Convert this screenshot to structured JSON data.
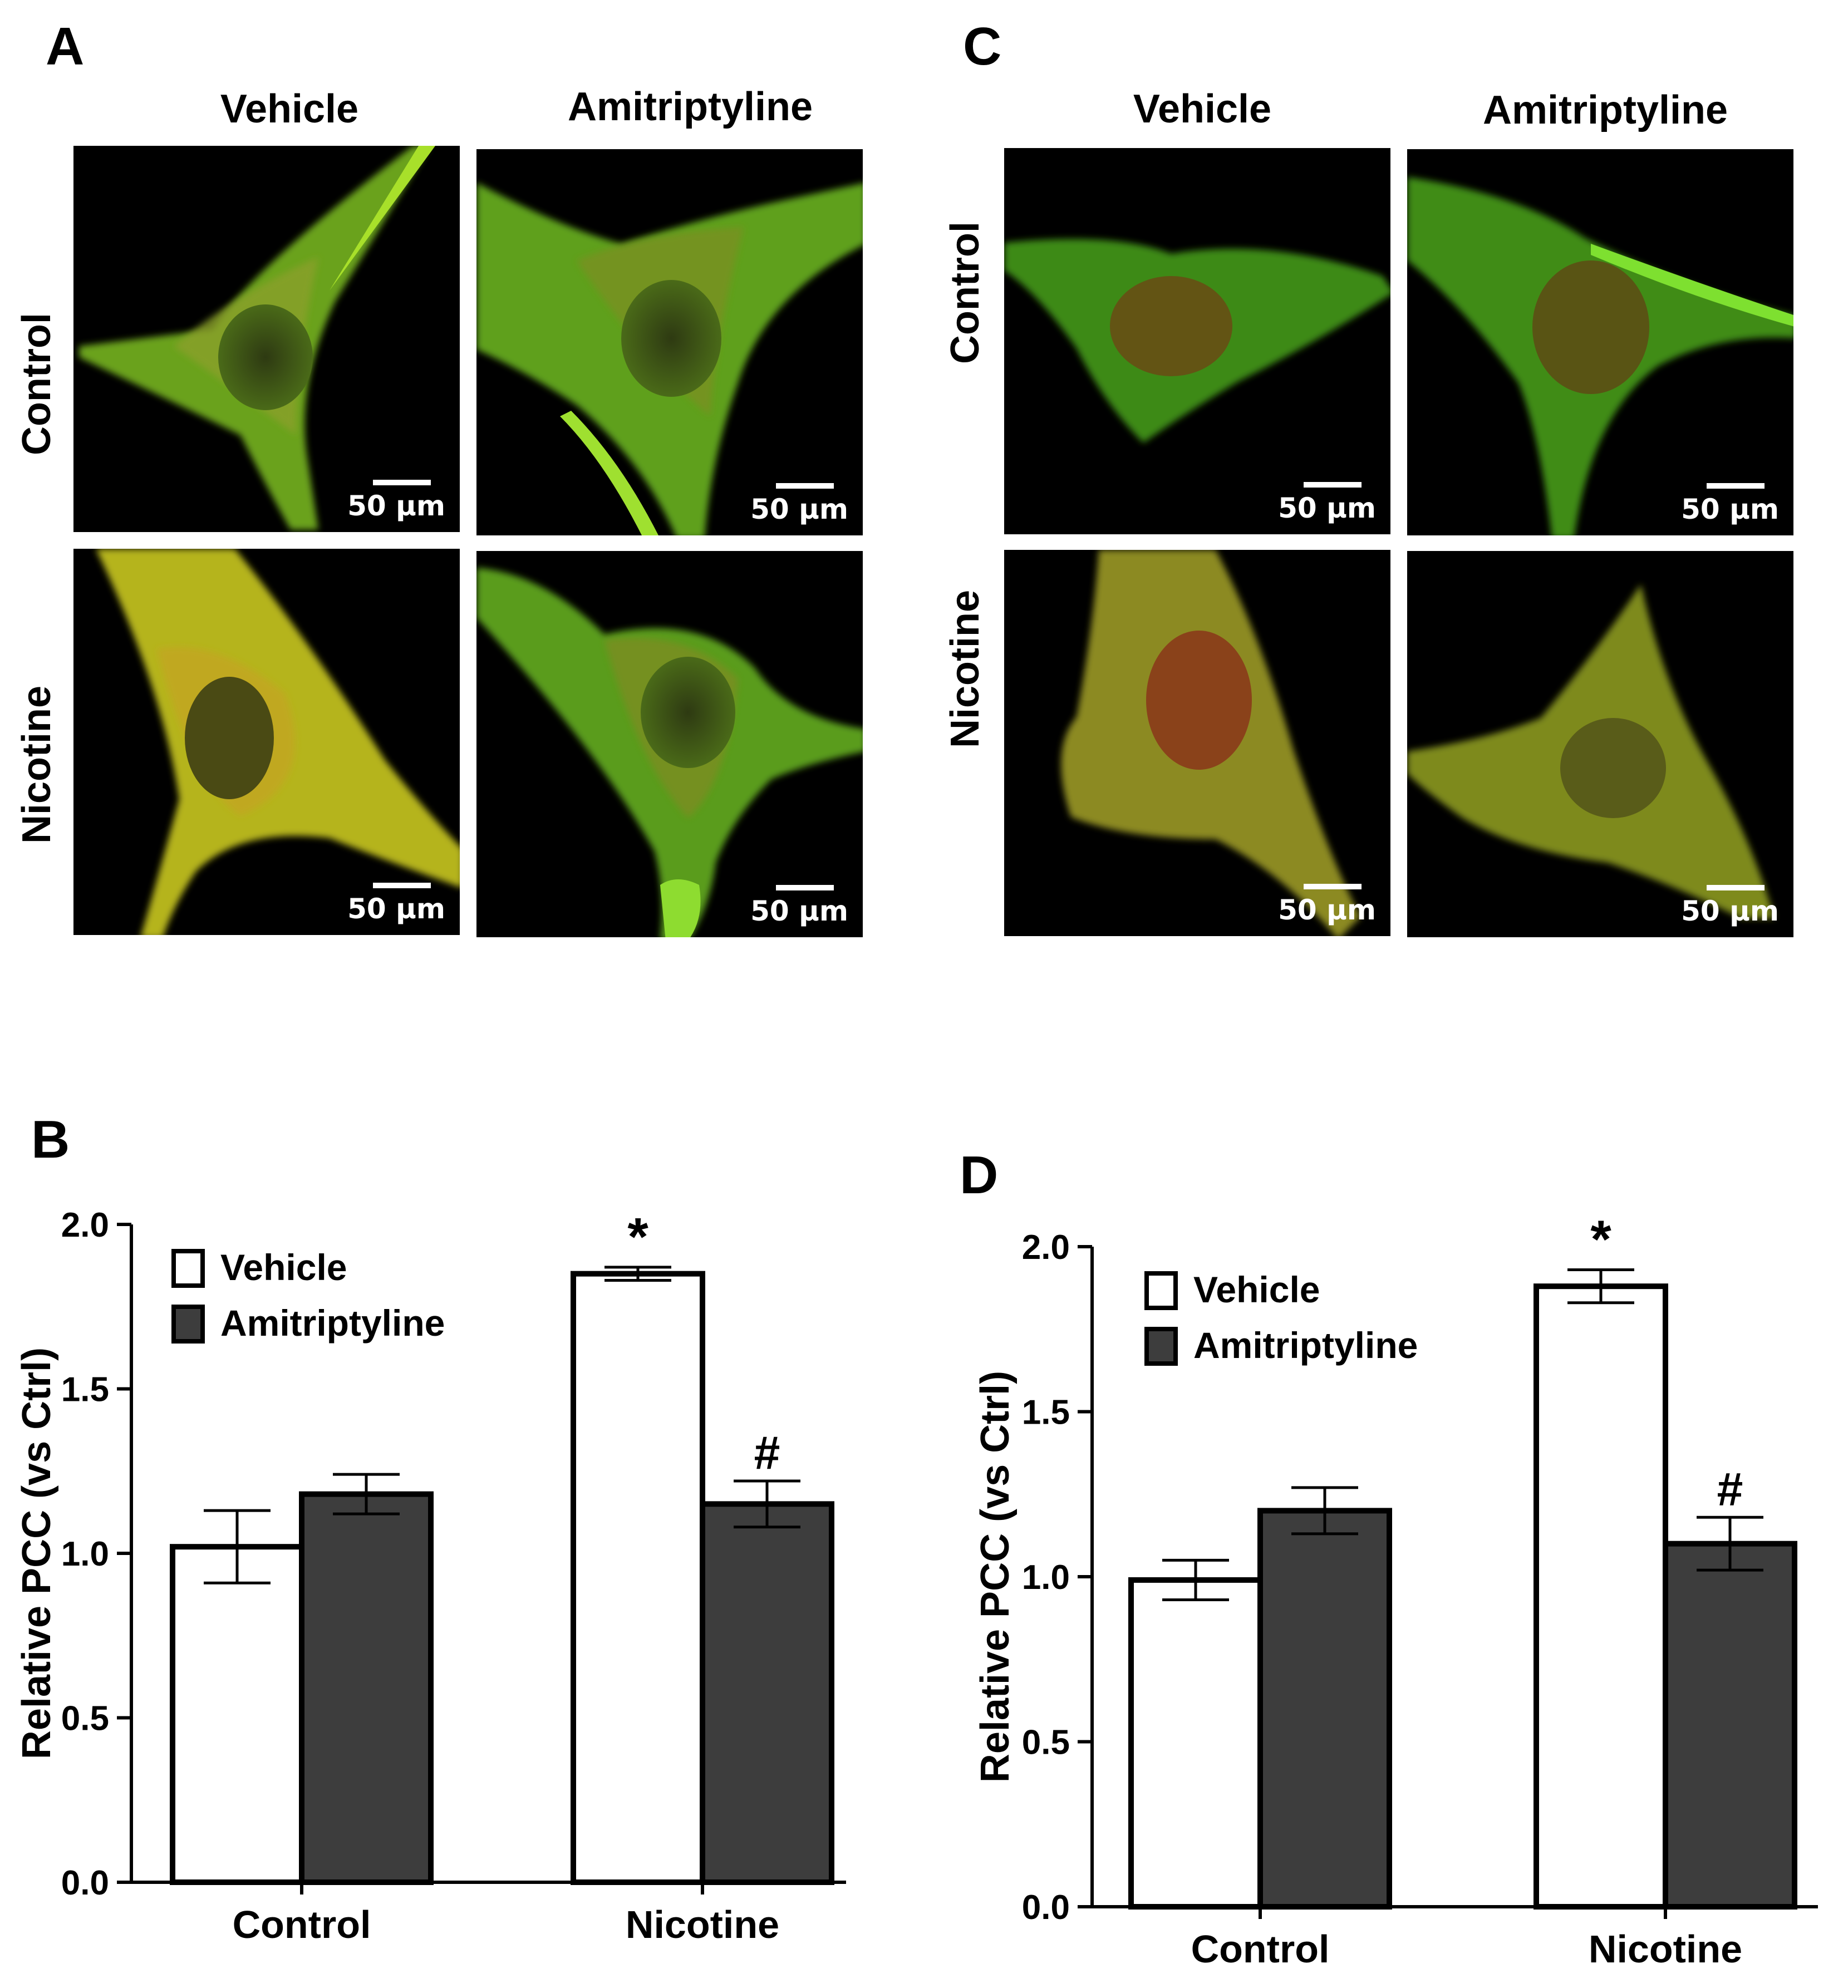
{
  "panels": {
    "A": {
      "letter": "A",
      "col_labels": [
        "Vehicle",
        "Amitriptyline"
      ],
      "row_labels": [
        "Control",
        "Nicotine"
      ],
      "scale_bar": "50 μm"
    },
    "C": {
      "letter": "C",
      "col_labels": [
        "Vehicle",
        "Amitriptyline"
      ],
      "row_labels": [
        "Control",
        "Nicotine"
      ],
      "scale_bar": "50 μm"
    },
    "B": {
      "letter": "B"
    },
    "D": {
      "letter": "D"
    }
  },
  "colors": {
    "vehicle": "#ffffff",
    "amitriptyline": "#3d3d3d",
    "green": "#3fcf1a",
    "yellow": "#c9c31a",
    "red": "#d22a1a"
  },
  "chart_data": [
    {
      "type": "bar",
      "panel": "B",
      "categories": [
        "Control",
        "Nicotine"
      ],
      "series": [
        {
          "name": "Vehicle",
          "values": [
            1.02,
            1.85
          ],
          "error": [
            0.11,
            0.02
          ],
          "annotations": [
            "",
            "*"
          ]
        },
        {
          "name": "Amitriptyline",
          "values": [
            1.18,
            1.15
          ],
          "error": [
            0.06,
            0.07
          ],
          "annotations": [
            "",
            "#"
          ]
        }
      ],
      "ylabel": "Relative PCC (vs Ctrl)",
      "xlabel": "",
      "ylim": [
        0,
        2.0
      ],
      "yticks": [
        "0.0",
        "0.5",
        "1.0",
        "1.5",
        "2.0"
      ],
      "legend": "top-left",
      "grid": false
    },
    {
      "type": "bar",
      "panel": "D",
      "categories": [
        "Control",
        "Nicotine"
      ],
      "series": [
        {
          "name": "Vehicle",
          "values": [
            0.99,
            1.88
          ],
          "error": [
            0.06,
            0.05
          ],
          "annotations": [
            "",
            "*"
          ]
        },
        {
          "name": "Amitriptyline",
          "values": [
            1.2,
            1.1
          ],
          "error": [
            0.07,
            0.08
          ],
          "annotations": [
            "",
            "#"
          ]
        }
      ],
      "ylabel": "Relative PCC (vs Ctrl)",
      "xlabel": "",
      "ylim": [
        0,
        2.0
      ],
      "yticks": [
        "0.0",
        "0.5",
        "1.0",
        "1.5",
        "2.0"
      ],
      "legend": "top-left",
      "grid": false
    }
  ]
}
